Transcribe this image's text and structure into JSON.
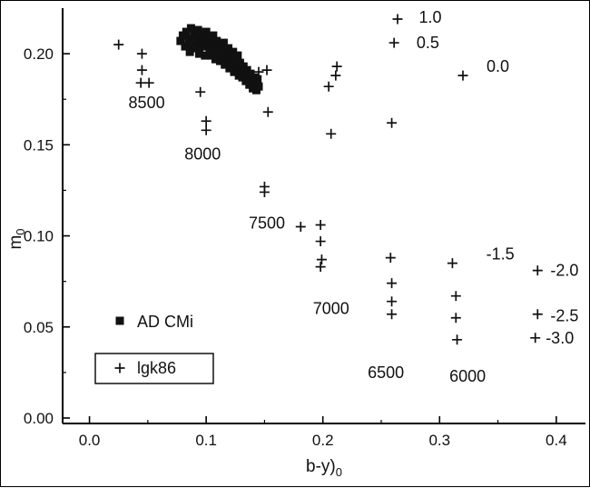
{
  "chart_data": {
    "type": "scatter",
    "title": "",
    "xlabel_main": "b-y)",
    "xlabel_sub": "0",
    "ylabel_main": "m",
    "ylabel_sub": "0",
    "xlim": [
      -0.023,
      0.425
    ],
    "ylim": [
      -0.003,
      0.225
    ],
    "xticks": [
      0.0,
      0.1,
      0.2,
      0.3,
      0.4
    ],
    "xtick_labels": [
      "0.0",
      "0.1",
      "0.2",
      "0.3",
      "0.4"
    ],
    "yticks": [
      0.0,
      0.05,
      0.1,
      0.15,
      0.2
    ],
    "ytick_labels": [
      "0.00",
      "0.05",
      "0.10",
      "0.15",
      "0.20"
    ],
    "grid": false,
    "marker_color": "#111111",
    "series": [
      {
        "name": "AD CMi",
        "marker": "square",
        "points": [
          [
            0.078,
            0.207
          ],
          [
            0.08,
            0.21
          ],
          [
            0.082,
            0.204
          ],
          [
            0.083,
            0.212
          ],
          [
            0.085,
            0.208
          ],
          [
            0.086,
            0.201
          ],
          [
            0.087,
            0.214
          ],
          [
            0.088,
            0.205
          ],
          [
            0.09,
            0.21
          ],
          [
            0.091,
            0.203
          ],
          [
            0.092,
            0.207
          ],
          [
            0.093,
            0.213
          ],
          [
            0.094,
            0.2
          ],
          [
            0.095,
            0.206
          ],
          [
            0.096,
            0.211
          ],
          [
            0.097,
            0.204
          ],
          [
            0.098,
            0.208
          ],
          [
            0.099,
            0.199
          ],
          [
            0.1,
            0.212
          ],
          [
            0.101,
            0.205
          ],
          [
            0.102,
            0.209
          ],
          [
            0.103,
            0.202
          ],
          [
            0.104,
            0.206
          ],
          [
            0.105,
            0.199
          ],
          [
            0.106,
            0.21
          ],
          [
            0.107,
            0.204
          ],
          [
            0.108,
            0.197
          ],
          [
            0.109,
            0.207
          ],
          [
            0.11,
            0.201
          ],
          [
            0.111,
            0.205
          ],
          [
            0.112,
            0.196
          ],
          [
            0.113,
            0.203
          ],
          [
            0.114,
            0.199
          ],
          [
            0.115,
            0.206
          ],
          [
            0.116,
            0.194
          ],
          [
            0.117,
            0.201
          ],
          [
            0.118,
            0.197
          ],
          [
            0.119,
            0.203
          ],
          [
            0.12,
            0.192
          ],
          [
            0.121,
            0.199
          ],
          [
            0.122,
            0.195
          ],
          [
            0.123,
            0.201
          ],
          [
            0.124,
            0.19
          ],
          [
            0.125,
            0.197
          ],
          [
            0.126,
            0.193
          ],
          [
            0.127,
            0.199
          ],
          [
            0.128,
            0.188
          ],
          [
            0.129,
            0.195
          ],
          [
            0.13,
            0.191
          ],
          [
            0.131,
            0.187
          ],
          [
            0.132,
            0.193
          ],
          [
            0.133,
            0.189
          ],
          [
            0.134,
            0.185
          ],
          [
            0.135,
            0.191
          ],
          [
            0.136,
            0.187
          ],
          [
            0.137,
            0.183
          ],
          [
            0.138,
            0.189
          ],
          [
            0.139,
            0.185
          ],
          [
            0.14,
            0.181
          ],
          [
            0.141,
            0.187
          ],
          [
            0.142,
            0.183
          ],
          [
            0.143,
            0.18
          ],
          [
            0.144,
            0.186
          ],
          [
            0.145,
            0.182
          ]
        ]
      },
      {
        "name": "lgk86",
        "marker": "plus",
        "points": [
          [
            0.264,
            0.219
          ],
          [
            0.261,
            0.206
          ],
          [
            0.32,
            0.188
          ],
          [
            0.025,
            0.205
          ],
          [
            0.045,
            0.2
          ],
          [
            0.045,
            0.191
          ],
          [
            0.044,
            0.184
          ],
          [
            0.051,
            0.184
          ],
          [
            0.095,
            0.179
          ],
          [
            0.1,
            0.163
          ],
          [
            0.1,
            0.158
          ],
          [
            0.131,
            0.19
          ],
          [
            0.145,
            0.19
          ],
          [
            0.152,
            0.191
          ],
          [
            0.153,
            0.168
          ],
          [
            0.15,
            0.127
          ],
          [
            0.15,
            0.124
          ],
          [
            0.181,
            0.105
          ],
          [
            0.205,
            0.182
          ],
          [
            0.207,
            0.156
          ],
          [
            0.198,
            0.106
          ],
          [
            0.198,
            0.097
          ],
          [
            0.199,
            0.087
          ],
          [
            0.198,
            0.083
          ],
          [
            0.212,
            0.193
          ],
          [
            0.211,
            0.188
          ],
          [
            0.259,
            0.162
          ],
          [
            0.258,
            0.088
          ],
          [
            0.259,
            0.074
          ],
          [
            0.259,
            0.064
          ],
          [
            0.259,
            0.057
          ],
          [
            0.311,
            0.085
          ],
          [
            0.314,
            0.067
          ],
          [
            0.314,
            0.055
          ],
          [
            0.315,
            0.043
          ],
          [
            0.384,
            0.081
          ],
          [
            0.384,
            0.057
          ],
          [
            0.382,
            0.044
          ]
        ]
      }
    ],
    "annotations": [
      {
        "text": "1.0",
        "x": 0.292,
        "y": 0.22
      },
      {
        "text": "0.5",
        "x": 0.29,
        "y": 0.206
      },
      {
        "text": "0.0",
        "x": 0.35,
        "y": 0.193
      },
      {
        "text": "8500",
        "x": 0.049,
        "y": 0.173
      },
      {
        "text": "8000",
        "x": 0.097,
        "y": 0.145
      },
      {
        "text": "7500",
        "x": 0.152,
        "y": 0.107
      },
      {
        "text": "7000",
        "x": 0.207,
        "y": 0.06
      },
      {
        "text": "6500",
        "x": 0.254,
        "y": 0.025
      },
      {
        "text": "6000",
        "x": 0.324,
        "y": 0.023
      },
      {
        "text": "-1.5",
        "x": 0.352,
        "y": 0.09
      },
      {
        "text": "-2.0",
        "x": 0.407,
        "y": 0.081
      },
      {
        "text": "-2.5",
        "x": 0.407,
        "y": 0.056
      },
      {
        "text": "-3.0",
        "x": 0.403,
        "y": 0.044
      }
    ],
    "legend": {
      "position": "lower-left",
      "entries": [
        {
          "label": "AD CMi",
          "marker": "square",
          "boxed": false
        },
        {
          "label": "lgk86",
          "marker": "plus",
          "boxed": true
        }
      ]
    }
  }
}
